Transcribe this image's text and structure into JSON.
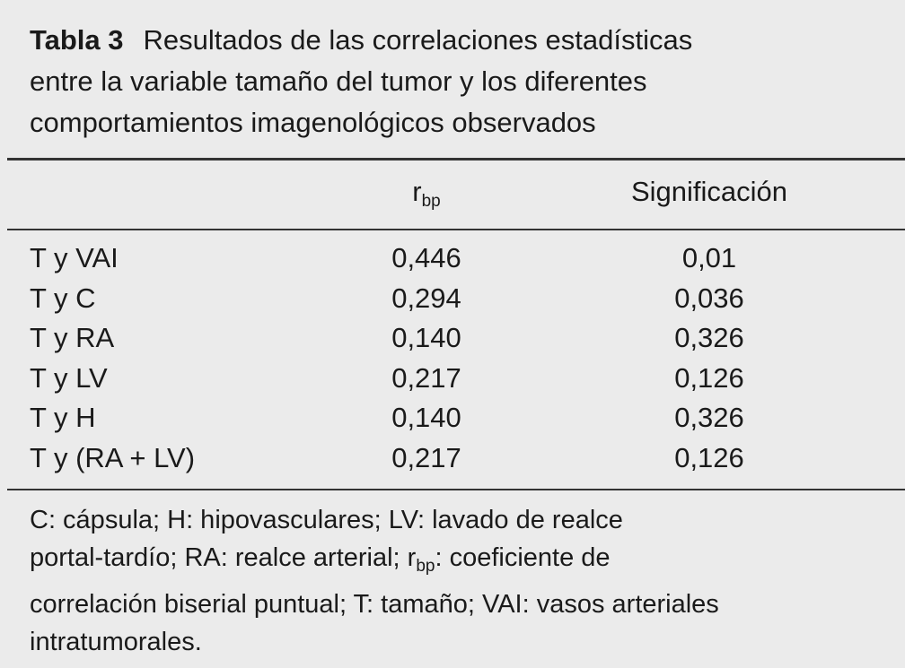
{
  "title": {
    "label": "Tabla 3",
    "lines": [
      "Resultados de las correlaciones estadísticas",
      "entre la variable tamaño del tumor y los diferentes",
      "comportamientos imagenológicos observados"
    ]
  },
  "table": {
    "header": [
      {
        "text": "r",
        "sub": "bp"
      },
      {
        "text": "Significación"
      }
    ],
    "rows": [
      [
        "T y VAI",
        "0,446",
        "0,01"
      ],
      [
        "T y C",
        "0,294",
        "0,036"
      ],
      [
        "T y RA",
        "0,140",
        "0,326"
      ],
      [
        "T y LV",
        "0,217",
        "0,126"
      ],
      [
        "T y H",
        "0,140",
        "0,326"
      ],
      [
        "T y (RA + LV)",
        "0,217",
        "0,126"
      ]
    ]
  },
  "footnote": {
    "lines": [
      [
        {
          "text": "C: cápsula; H: hipovasculares; LV: lavado de realce"
        }
      ],
      [
        {
          "text": "portal-tardío; RA: realce arterial; r"
        },
        {
          "sub": "bp"
        },
        {
          "text": ": coeficiente de"
        }
      ],
      [
        {
          "text": "correlación biserial puntual; T: tamaño; VAI: vasos arteriales"
        }
      ],
      [
        {
          "text": "intratumorales."
        }
      ]
    ]
  }
}
